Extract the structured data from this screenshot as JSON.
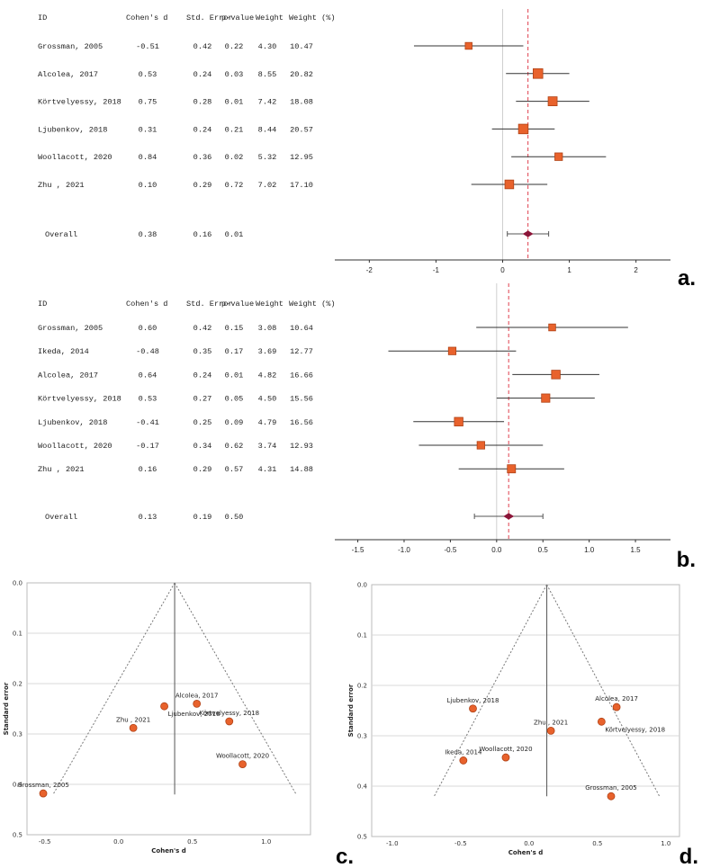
{
  "chart_data": [
    {
      "type": "forest",
      "panel_label": "a.",
      "columns": [
        "ID",
        "Cohen's d",
        "Std. Error",
        "p-value",
        "Weight",
        "Weight (%)"
      ],
      "studies": [
        {
          "id": "Grossman, 2005",
          "d": "-0.51",
          "se": "0.42",
          "p": "0.22",
          "w": "4.30",
          "wp": "10.47",
          "ci": [
            -1.33,
            0.31
          ],
          "dv": -0.51,
          "wv": 10.47
        },
        {
          "id": "Alcolea, 2017",
          "d": "0.53",
          "se": "0.24",
          "p": "0.03",
          "w": "8.55",
          "wp": "20.82",
          "ci": [
            0.05,
            1.0
          ],
          "dv": 0.53,
          "wv": 20.82
        },
        {
          "id": "Körtvelyessy, 2018",
          "d": "0.75",
          "se": "0.28",
          "p": "0.01",
          "w": "7.42",
          "wp": "18.08",
          "ci": [
            0.2,
            1.3
          ],
          "dv": 0.75,
          "wv": 18.08
        },
        {
          "id": "Ljubenkov, 2018",
          "d": "0.31",
          "se": "0.24",
          "p": "0.21",
          "w": "8.44",
          "wp": "20.57",
          "ci": [
            -0.16,
            0.78
          ],
          "dv": 0.31,
          "wv": 20.57
        },
        {
          "id": "Woollacott, 2020",
          "d": "0.84",
          "se": "0.36",
          "p": "0.02",
          "w": "5.32",
          "wp": "12.95",
          "ci": [
            0.13,
            1.55
          ],
          "dv": 0.84,
          "wv": 12.95
        },
        {
          "id": "Zhu , 2021",
          "d": "0.10",
          "se": "0.29",
          "p": "0.72",
          "w": "7.02",
          "wp": "17.10",
          "ci": [
            -0.47,
            0.67
          ],
          "dv": 0.1,
          "wv": 17.1
        }
      ],
      "overall": {
        "id": "Overall",
        "d": "0.38",
        "se": "0.16",
        "p": "0.01",
        "ci": [
          0.07,
          0.69
        ],
        "dv": 0.38
      },
      "xlim": [
        -2.45,
        2.45
      ],
      "xticks": [
        "-2",
        "-1",
        "0",
        "1",
        "2"
      ],
      "xtick_values": [
        -2,
        -1,
        0,
        1,
        2
      ]
    },
    {
      "type": "forest",
      "panel_label": "b.",
      "columns": [
        "ID",
        "Cohen's d",
        "Std. Error",
        "p-value",
        "Weight",
        "Weight (%)"
      ],
      "studies": [
        {
          "id": "Grossman, 2005",
          "d": "0.60",
          "se": "0.42",
          "p": "0.15",
          "w": "3.08",
          "wp": "10.64",
          "ci": [
            -0.22,
            1.42
          ],
          "dv": 0.6,
          "wv": 10.64
        },
        {
          "id": "Ikeda, 2014",
          "d": "-0.48",
          "se": "0.35",
          "p": "0.17",
          "w": "3.69",
          "wp": "12.77",
          "ci": [
            -1.17,
            0.21
          ],
          "dv": -0.48,
          "wv": 12.77
        },
        {
          "id": "Alcolea, 2017",
          "d": "0.64",
          "se": "0.24",
          "p": "0.01",
          "w": "4.82",
          "wp": "16.66",
          "ci": [
            0.17,
            1.11
          ],
          "dv": 0.64,
          "wv": 16.66
        },
        {
          "id": "Körtvelyessy, 2018",
          "d": "0.53",
          "se": "0.27",
          "p": "0.05",
          "w": "4.50",
          "wp": "15.56",
          "ci": [
            0.0,
            1.06
          ],
          "dv": 0.53,
          "wv": 15.56
        },
        {
          "id": "Ljubenkov, 2018",
          "d": "-0.41",
          "se": "0.25",
          "p": "0.09",
          "w": "4.79",
          "wp": "16.56",
          "ci": [
            -0.9,
            0.08
          ],
          "dv": -0.41,
          "wv": 16.56
        },
        {
          "id": "Woollacott, 2020",
          "d": "-0.17",
          "se": "0.34",
          "p": "0.62",
          "w": "3.74",
          "wp": "12.93",
          "ci": [
            -0.84,
            0.5
          ],
          "dv": -0.17,
          "wv": 12.93
        },
        {
          "id": "Zhu , 2021",
          "d": "0.16",
          "se": "0.29",
          "p": "0.57",
          "w": "4.31",
          "wp": "14.88",
          "ci": [
            -0.41,
            0.73
          ],
          "dv": 0.16,
          "wv": 14.88
        }
      ],
      "overall": {
        "id": "Overall",
        "d": "0.13",
        "se": "0.19",
        "p": "0.50",
        "ci": [
          -0.24,
          0.5
        ],
        "dv": 0.13
      },
      "xlim": [
        -1.7,
        1.83
      ],
      "xticks": [
        "-1.5",
        "-1.0",
        "-0.5",
        "0.0",
        "0.5",
        "1.0",
        "1.5"
      ],
      "xtick_values": [
        -1.5,
        -1.0,
        -0.5,
        0.0,
        0.5,
        1.0,
        1.5
      ]
    },
    {
      "type": "funnel",
      "panel_label": "c.",
      "xlabel": "Cohen's d",
      "ylabel": "Standard error",
      "xlim": [
        -0.62,
        1.3
      ],
      "ylim": [
        0.0,
        0.5
      ],
      "xticks": [
        "-0.5",
        "0.0",
        "0.5",
        "1.0"
      ],
      "xtick_values": [
        -0.5,
        0.0,
        0.5,
        1.0
      ],
      "yticks": [
        "0.0",
        "0.1",
        "0.2",
        "0.3",
        "0.4",
        "0.5"
      ],
      "ytick_values": [
        0.0,
        0.1,
        0.2,
        0.3,
        0.4,
        0.5
      ],
      "center": 0.38,
      "se_max": 0.42,
      "points": [
        {
          "label": "Alcolea, 2017",
          "x": 0.53,
          "y": 0.24,
          "pos": "above"
        },
        {
          "label": "Ljubenkov, 2018",
          "x": 0.31,
          "y": 0.245,
          "pos": "below-right"
        },
        {
          "label": "Körtvelyessy, 2018",
          "x": 0.75,
          "y": 0.275,
          "pos": "above"
        },
        {
          "label": "Zhu , 2021",
          "x": 0.1,
          "y": 0.288,
          "pos": "above"
        },
        {
          "label": "Woollacott, 2020",
          "x": 0.84,
          "y": 0.36,
          "pos": "above"
        },
        {
          "label": "Grossman, 2005",
          "x": -0.51,
          "y": 0.418,
          "pos": "above"
        }
      ]
    },
    {
      "type": "funnel",
      "panel_label": "d.",
      "xlabel": "Cohen's d",
      "ylabel": "Standard error",
      "xlim": [
        -1.15,
        1.1
      ],
      "ylim": [
        0.0,
        0.5
      ],
      "xticks": [
        "-1.0",
        "-0.5",
        "0.0",
        "0.5",
        "1.0"
      ],
      "xtick_values": [
        -1.0,
        -0.5,
        0.0,
        0.5,
        1.0
      ],
      "yticks": [
        "0.0",
        "0.1",
        "0.2",
        "0.3",
        "0.4",
        "0.5"
      ],
      "ytick_values": [
        0.0,
        0.1,
        0.2,
        0.3,
        0.4,
        0.5
      ],
      "center": 0.13,
      "se_max": 0.42,
      "points": [
        {
          "label": "Ljubenkov, 2018",
          "x": -0.41,
          "y": 0.246,
          "pos": "above"
        },
        {
          "label": "Alcolea, 2017",
          "x": 0.64,
          "y": 0.243,
          "pos": "above"
        },
        {
          "label": "Körtvelyessy, 2018",
          "x": 0.53,
          "y": 0.272,
          "pos": "below-right"
        },
        {
          "label": "Zhu , 2021",
          "x": 0.16,
          "y": 0.29,
          "pos": "above"
        },
        {
          "label": "Woollacott, 2020",
          "x": -0.17,
          "y": 0.343,
          "pos": "above"
        },
        {
          "label": "Ikeda, 2014",
          "x": -0.48,
          "y": 0.349,
          "pos": "above"
        },
        {
          "label": "Grossman, 2005",
          "x": 0.6,
          "y": 0.42,
          "pos": "above"
        }
      ]
    }
  ]
}
